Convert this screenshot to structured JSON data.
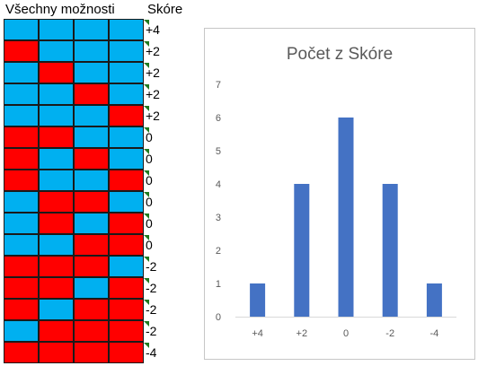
{
  "sheet": {
    "header_all": "Všechny možnosti",
    "header_score": "Skóre",
    "colors": {
      "blue": "#00B0F0",
      "red": "#FF0000"
    },
    "rows": [
      {
        "cells": [
          "blue",
          "blue",
          "blue",
          "blue"
        ],
        "score": "+4"
      },
      {
        "cells": [
          "red",
          "blue",
          "blue",
          "blue"
        ],
        "score": "+2"
      },
      {
        "cells": [
          "blue",
          "red",
          "blue",
          "blue"
        ],
        "score": "+2"
      },
      {
        "cells": [
          "blue",
          "blue",
          "red",
          "blue"
        ],
        "score": "+2"
      },
      {
        "cells": [
          "blue",
          "blue",
          "blue",
          "red"
        ],
        "score": "+2"
      },
      {
        "cells": [
          "red",
          "red",
          "blue",
          "blue"
        ],
        "score": "0"
      },
      {
        "cells": [
          "red",
          "blue",
          "red",
          "blue"
        ],
        "score": "0"
      },
      {
        "cells": [
          "red",
          "blue",
          "blue",
          "red"
        ],
        "score": "0"
      },
      {
        "cells": [
          "blue",
          "red",
          "red",
          "blue"
        ],
        "score": "0"
      },
      {
        "cells": [
          "blue",
          "red",
          "blue",
          "red"
        ],
        "score": "0"
      },
      {
        "cells": [
          "blue",
          "blue",
          "red",
          "red"
        ],
        "score": "0"
      },
      {
        "cells": [
          "red",
          "red",
          "red",
          "blue"
        ],
        "score": "-2"
      },
      {
        "cells": [
          "red",
          "red",
          "blue",
          "red"
        ],
        "score": "-2"
      },
      {
        "cells": [
          "red",
          "blue",
          "red",
          "red"
        ],
        "score": "-2"
      },
      {
        "cells": [
          "blue",
          "red",
          "red",
          "red"
        ],
        "score": "-2"
      },
      {
        "cells": [
          "red",
          "red",
          "red",
          "red"
        ],
        "score": "-4"
      }
    ]
  },
  "chart_data": {
    "type": "bar",
    "title": "Počet z Skóre",
    "categories": [
      "+4",
      "+2",
      "0",
      "-2",
      "-4"
    ],
    "values": [
      1,
      4,
      6,
      4,
      1
    ],
    "ylim": [
      0,
      7
    ],
    "yticks": [
      0,
      1,
      2,
      3,
      4,
      5,
      6,
      7
    ],
    "grid": false,
    "legend": "none",
    "bar_color": "#4472C4"
  }
}
